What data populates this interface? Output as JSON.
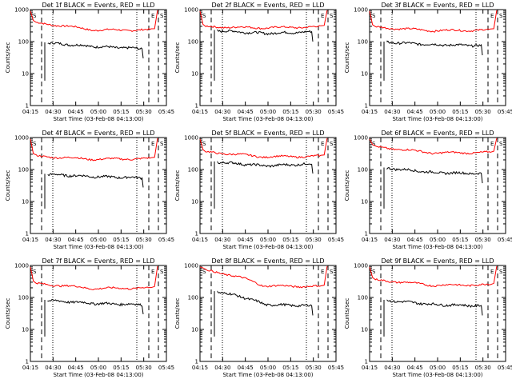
{
  "chart_data": [
    {
      "type": "line",
      "title": "Det 1f BLACK = Events, RED = LLD",
      "ylabel": "Counts/sec",
      "xlabel": "Start Time (03-Feb-08 04:13:00)",
      "xticks": [
        "04:15",
        "04:30",
        "04:45",
        "05:00",
        "05:15",
        "05:30",
        "05:45"
      ],
      "yticks": [
        "1",
        "10",
        "100",
        "1000"
      ],
      "scale": "log",
      "ylim": [
        1,
        1000
      ],
      "markers": [
        "S",
        "E",
        "S"
      ],
      "series": [
        {
          "name": "Events",
          "color": "#000000",
          "start": 90,
          "mid": 70,
          "end": 60
        },
        {
          "name": "LLD",
          "color": "#ff0000",
          "start": 380,
          "mid": 230,
          "end": 230
        }
      ]
    },
    {
      "type": "line",
      "title": "Det 2f BLACK = Events, RED = LLD",
      "ylabel": "Counts/sec",
      "xlabel": "Start Time (03-Feb-08 04:13:00)",
      "xticks": [
        "04:15",
        "04:30",
        "04:45",
        "05:00",
        "05:15",
        "05:30",
        "05:45"
      ],
      "yticks": [
        "1",
        "10",
        "100",
        "1000"
      ],
      "scale": "log",
      "ylim": [
        1,
        1000
      ],
      "markers": [
        "S",
        "E",
        "S"
      ],
      "series": [
        {
          "name": "Events",
          "color": "#000000",
          "start": 220,
          "mid": 180,
          "end": 200
        },
        {
          "name": "LLD",
          "color": "#ff0000",
          "start": 290,
          "mid": 270,
          "end": 290
        }
      ]
    },
    {
      "type": "line",
      "title": "Det 3f BLACK = Events, RED = LLD",
      "ylabel": "Counts/sec",
      "xlabel": "Start Time (03-Feb-08 04:13:00)",
      "xticks": [
        "04:15",
        "04:30",
        "04:45",
        "05:00",
        "05:15",
        "05:30",
        "05:45"
      ],
      "yticks": [
        "1",
        "10",
        "100",
        "1000"
      ],
      "scale": "log",
      "ylim": [
        1,
        1000
      ],
      "markers": [
        "S",
        "E",
        "S"
      ],
      "series": [
        {
          "name": "Events",
          "color": "#000000",
          "start": 95,
          "mid": 80,
          "end": 75
        },
        {
          "name": "LLD",
          "color": "#ff0000",
          "start": 280,
          "mid": 220,
          "end": 230
        }
      ]
    },
    {
      "type": "line",
      "title": "Det 4f BLACK = Events, RED = LLD",
      "ylabel": "Counts/sec",
      "xlabel": "Start Time (03-Feb-08 04:13:00)",
      "xticks": [
        "04:15",
        "04:30",
        "04:45",
        "05:00",
        "05:15",
        "05:30",
        "05:45"
      ],
      "yticks": [
        "1",
        "10",
        "100",
        "1000"
      ],
      "scale": "log",
      "ylim": [
        1,
        1000
      ],
      "markers": [
        "S",
        "E",
        "S"
      ],
      "series": [
        {
          "name": "Events",
          "color": "#000000",
          "start": 70,
          "mid": 60,
          "end": 55
        },
        {
          "name": "LLD",
          "color": "#ff0000",
          "start": 260,
          "mid": 210,
          "end": 220
        }
      ]
    },
    {
      "type": "line",
      "title": "Det 5f BLACK = Events, RED = LLD",
      "ylabel": "Counts/sec",
      "xlabel": "Start Time (03-Feb-08 04:13:00)",
      "xticks": [
        "04:15",
        "04:30",
        "04:45",
        "05:00",
        "05:15",
        "05:30",
        "05:45"
      ],
      "yticks": [
        "1",
        "10",
        "100",
        "1000"
      ],
      "scale": "log",
      "ylim": [
        1,
        1000
      ],
      "markers": [
        "S",
        "E",
        "S"
      ],
      "series": [
        {
          "name": "Events",
          "color": "#000000",
          "start": 170,
          "mid": 130,
          "end": 150
        },
        {
          "name": "LLD",
          "color": "#ff0000",
          "start": 350,
          "mid": 250,
          "end": 260
        }
      ]
    },
    {
      "type": "line",
      "title": "Det 6f BLACK = Events, RED = LLD",
      "ylabel": "Counts/sec",
      "xlabel": "Start Time (03-Feb-08 04:13:00)",
      "xticks": [
        "04:15",
        "04:30",
        "04:45",
        "05:00",
        "05:15",
        "05:30",
        "05:45"
      ],
      "yticks": [
        "1",
        "10",
        "100",
        "1000"
      ],
      "scale": "log",
      "ylim": [
        1,
        1000
      ],
      "markers": [
        "S",
        "E",
        "S"
      ],
      "series": [
        {
          "name": "Events",
          "color": "#000000",
          "start": 110,
          "mid": 80,
          "end": 75
        },
        {
          "name": "LLD",
          "color": "#ff0000",
          "start": 500,
          "mid": 330,
          "end": 340
        }
      ]
    },
    {
      "type": "line",
      "title": "Det 7f BLACK = Events, RED = LLD",
      "ylabel": "Counts/sec",
      "xlabel": "Start Time (03-Feb-08 04:13:00)",
      "xticks": [
        "04:15",
        "04:30",
        "04:45",
        "05:00",
        "05:15",
        "05:30",
        "05:45"
      ],
      "yticks": [
        "1",
        "10",
        "100",
        "1000"
      ],
      "scale": "log",
      "ylim": [
        1,
        1000
      ],
      "markers": [
        "S",
        "E",
        "S"
      ],
      "series": [
        {
          "name": "Events",
          "color": "#000000",
          "start": 80,
          "mid": 65,
          "end": 60
        },
        {
          "name": "LLD",
          "color": "#ff0000",
          "start": 270,
          "mid": 190,
          "end": 200
        }
      ]
    },
    {
      "type": "line",
      "title": "Det 8f BLACK = Events, RED = LLD",
      "ylabel": "Counts/sec",
      "xlabel": "Start Time (03-Feb-08 04:13:00)",
      "xticks": [
        "04:15",
        "04:30",
        "04:45",
        "05:00",
        "05:15",
        "05:30",
        "05:45"
      ],
      "yticks": [
        "1",
        "10",
        "100",
        "1000"
      ],
      "scale": "log",
      "ylim": [
        1,
        1000
      ],
      "markers": [
        "S",
        "E",
        "S"
      ],
      "series": [
        {
          "name": "Events",
          "color": "#000000",
          "start": 150,
          "mid": 60,
          "end": 55
        },
        {
          "name": "LLD",
          "color": "#ff0000",
          "start": 700,
          "mid": 230,
          "end": 220
        }
      ]
    },
    {
      "type": "line",
      "title": "Det 9f BLACK = Events, RED = LLD",
      "ylabel": "Counts/sec",
      "xlabel": "Start Time (03-Feb-08 04:13:00)",
      "xticks": [
        "04:15",
        "04:30",
        "04:45",
        "05:00",
        "05:15",
        "05:30",
        "05:45"
      ],
      "yticks": [
        "1",
        "10",
        "100",
        "1000"
      ],
      "scale": "log",
      "ylim": [
        1,
        1000
      ],
      "markers": [
        "S",
        "E",
        "S"
      ],
      "series": [
        {
          "name": "Events",
          "color": "#000000",
          "start": 80,
          "mid": 60,
          "end": 55
        },
        {
          "name": "LLD",
          "color": "#ff0000",
          "start": 350,
          "mid": 240,
          "end": 250
        }
      ]
    }
  ]
}
